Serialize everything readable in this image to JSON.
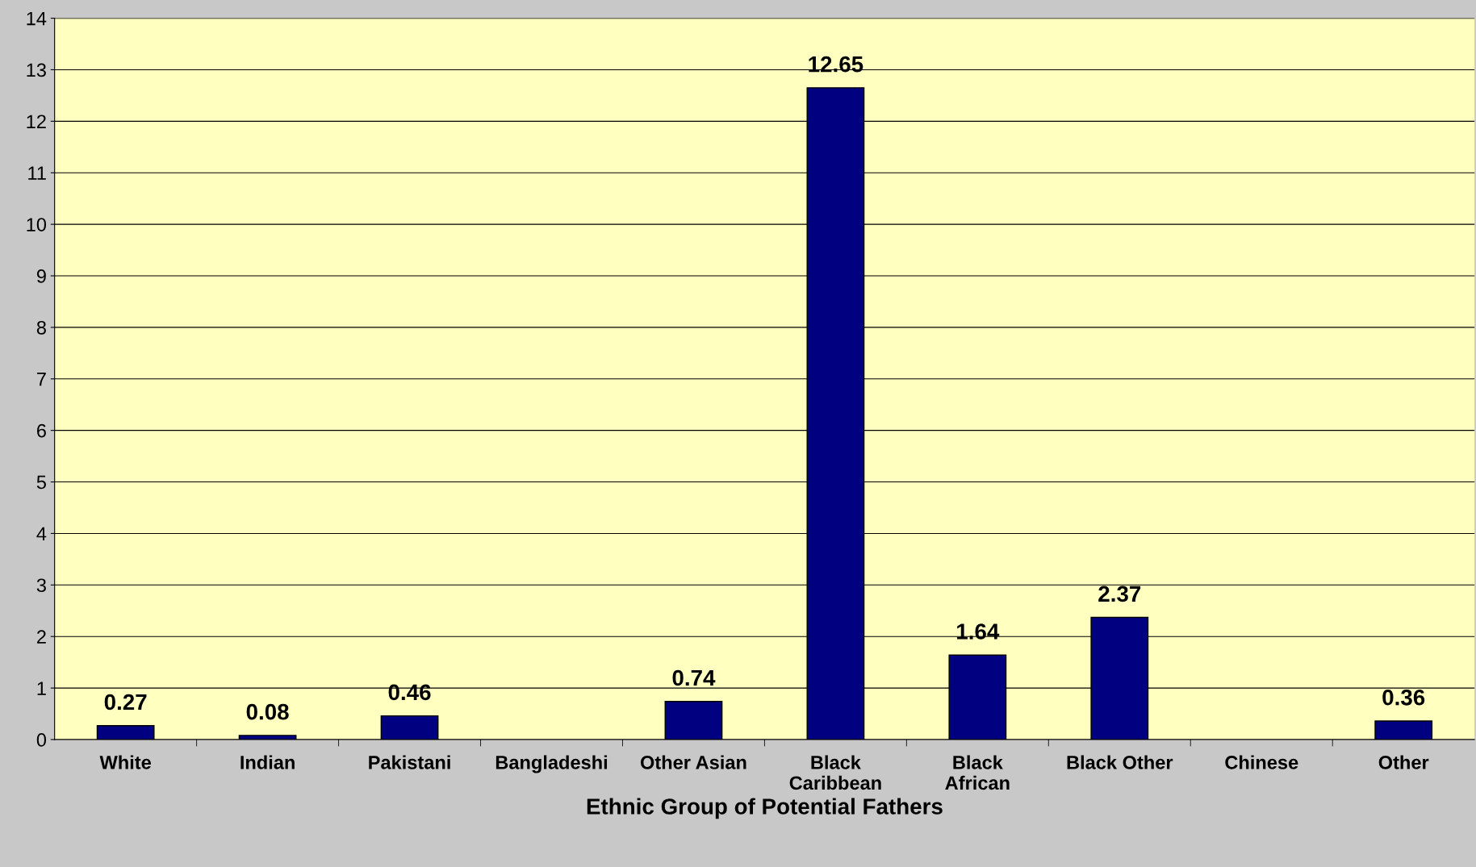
{
  "chart_data": {
    "type": "bar",
    "xlabel": "Ethnic Group of Potential Fathers",
    "categories": [
      "White",
      "Indian",
      "Pakistani",
      "Bangladeshi",
      "Other Asian",
      "Black\nCaribbean",
      "Black\nAfrican",
      "Black Other",
      "Chinese",
      "Other"
    ],
    "values": [
      0.27,
      0.08,
      0.46,
      null,
      0.74,
      12.65,
      1.64,
      2.37,
      null,
      0.36
    ],
    "color": "#000080",
    "ylim": [
      0,
      14
    ],
    "yticks": [
      0,
      1,
      2,
      3,
      4,
      5,
      6,
      7,
      8,
      9,
      10,
      11,
      12,
      13,
      14
    ],
    "grid": "y",
    "data_labels": true,
    "legend": false
  }
}
